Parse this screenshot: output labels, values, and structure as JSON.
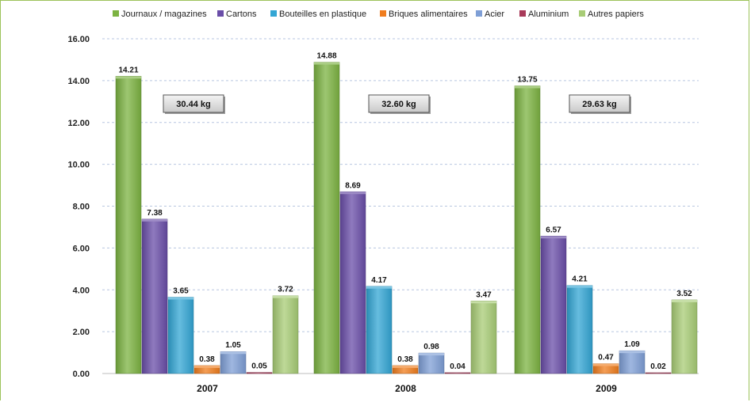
{
  "chart_data": {
    "type": "bar",
    "title": "",
    "xlabel": "",
    "ylabel": "",
    "ylim": [
      0,
      16
    ],
    "yticks": [
      "0.00",
      "2.00",
      "4.00",
      "6.00",
      "8.00",
      "10.00",
      "12.00",
      "14.00",
      "16.00"
    ],
    "grid": true,
    "legend_position": "top",
    "categories": [
      "2007",
      "2008",
      "2009"
    ],
    "series": [
      {
        "name": "Journaux / magazines",
        "color": "#7cb342",
        "values": [
          14.21,
          14.88,
          13.75
        ],
        "labels": [
          "14.21",
          "14.88",
          "13.75"
        ]
      },
      {
        "name": "Cartons",
        "color": "#6a4ea8",
        "values": [
          7.38,
          8.69,
          6.57
        ],
        "labels": [
          "7.38",
          "8.69",
          "6.57"
        ]
      },
      {
        "name": "Bouteilles  en plastique",
        "color": "#33a6d4",
        "values": [
          3.65,
          4.17,
          4.21
        ],
        "labels": [
          "3.65",
          "4.17",
          "4.21"
        ]
      },
      {
        "name": "Briques alimentaires",
        "color": "#f07d1e",
        "values": [
          0.38,
          0.38,
          0.47
        ],
        "labels": [
          "0.38",
          "0.38",
          "0.47"
        ]
      },
      {
        "name": "Acier",
        "color": "#7f9fd6",
        "values": [
          1.05,
          0.98,
          1.09
        ],
        "labels": [
          "1.05",
          "0.98",
          "1.09"
        ]
      },
      {
        "name": "Aluminium",
        "color": "#a83a5a",
        "values": [
          0.05,
          0.04,
          0.02
        ],
        "labels": [
          "0.05",
          "0.04",
          "0.02"
        ]
      },
      {
        "name": "Autres papiers",
        "color": "#a8cc76",
        "values": [
          3.72,
          3.47,
          3.52
        ],
        "labels": [
          "3.72",
          "3.47",
          "3.52"
        ]
      }
    ],
    "annotations": [
      "30.44 kg",
      "32.60 kg",
      "29.63 kg"
    ]
  }
}
